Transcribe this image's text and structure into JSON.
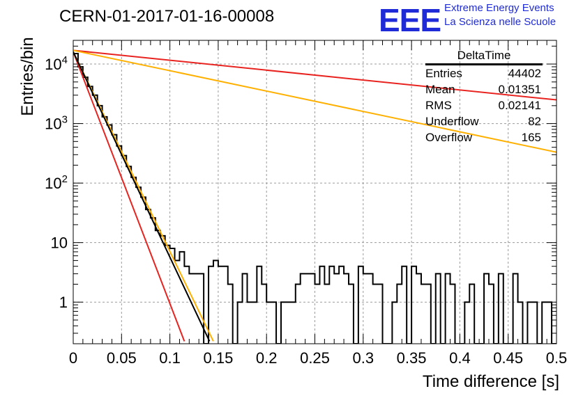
{
  "header": {
    "title": "CERN-01-2017-01-16-00008",
    "logo_text": "EEE",
    "logo_line1": "Extreme Energy Events",
    "logo_line2": "La Scienza nelle Scuole"
  },
  "stats_box": {
    "name": "DeltaTime",
    "rows": [
      {
        "label": "Entries",
        "value": "44402"
      },
      {
        "label": "Mean",
        "value": "0.01351"
      },
      {
        "label": "RMS",
        "value": "0.02141"
      },
      {
        "label": "Underflow",
        "value": "82"
      },
      {
        "label": "Overflow",
        "value": "165"
      }
    ]
  },
  "chart_data": {
    "type": "bar",
    "xlabel": "Time difference [s]",
    "ylabel": "Entries/bin",
    "xlim": [
      0,
      0.5
    ],
    "ylim": [
      0.2,
      25000
    ],
    "yscale": "log",
    "grid": true,
    "x_ticks": [
      "0",
      "0.05",
      "0.1",
      "0.15",
      "0.2",
      "0.25",
      "0.3",
      "0.35",
      "0.4",
      "0.45",
      "0.5"
    ],
    "y_ticks": [
      {
        "value": 1,
        "label": "1"
      },
      {
        "value": 10,
        "label": "10"
      },
      {
        "value": 100,
        "label": "10^2"
      },
      {
        "value": 1000,
        "label": "10^3"
      },
      {
        "value": 10000,
        "label": "10^4"
      }
    ],
    "bin_width": 0.005,
    "histogram_color": "#000000",
    "histogram_values": [
      15000,
      9000,
      6000,
      4200,
      3000,
      2000,
      1300,
      950,
      650,
      420,
      290,
      190,
      125,
      85,
      58,
      36,
      26,
      16,
      13,
      9,
      8,
      5,
      7,
      4,
      3,
      3,
      3,
      0,
      4,
      5,
      4,
      4,
      2,
      0,
      1,
      3,
      1,
      1,
      4,
      2,
      1,
      1,
      0,
      1,
      1,
      1,
      2,
      3,
      3,
      3,
      2,
      4,
      2,
      4,
      3,
      4,
      3,
      2,
      0,
      4,
      3,
      3,
      2,
      2,
      0,
      0,
      1,
      2,
      4,
      0,
      4,
      3,
      2,
      2,
      0,
      3,
      0,
      3,
      2,
      0,
      0,
      1,
      2,
      0,
      0,
      3,
      2,
      0,
      3,
      0,
      0,
      3,
      1,
      0,
      1,
      1,
      0,
      1,
      1,
      0
    ],
    "fits": [
      {
        "color": "#e8231f",
        "x": [
          0.0,
          0.115
        ],
        "y": [
          16000,
          0.22
        ]
      },
      {
        "color": "#ffb000",
        "x": [
          0.0,
          0.145
        ],
        "y": [
          16000,
          0.22
        ]
      },
      {
        "color": "#000000",
        "x": [
          0.0,
          0.141
        ],
        "y": [
          16000,
          0.22
        ]
      },
      {
        "color": "#e8231f",
        "x": [
          0.0,
          0.5
        ],
        "y": [
          17000,
          2500
        ]
      },
      {
        "color": "#ffb000",
        "x": [
          0.0,
          0.5
        ],
        "y": [
          17000,
          330
        ]
      }
    ]
  }
}
